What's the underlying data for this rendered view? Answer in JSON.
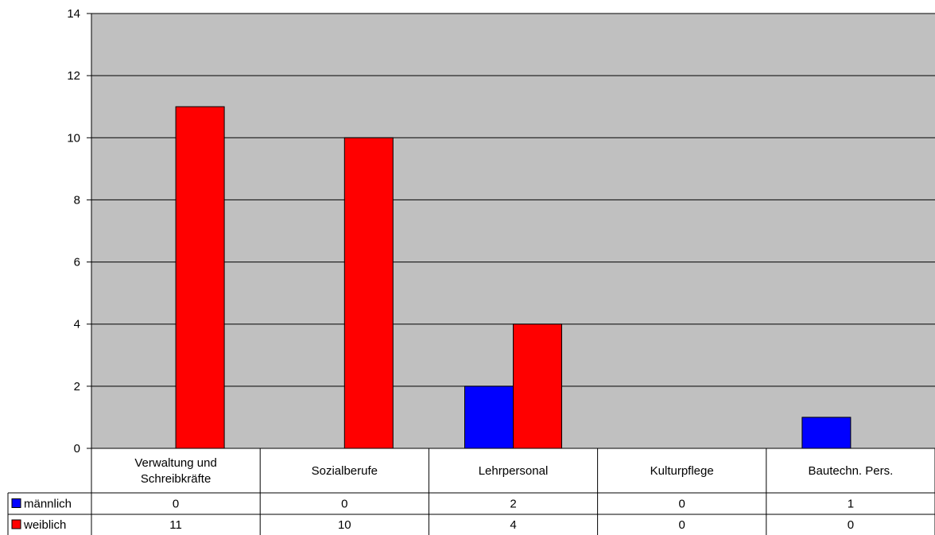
{
  "chart_data": {
    "type": "bar",
    "title": "",
    "xlabel": "",
    "ylabel": "",
    "ylim": [
      0,
      14
    ],
    "yticks": [
      0,
      2,
      4,
      6,
      8,
      10,
      12,
      14
    ],
    "grid": true,
    "legend": "data-table-left",
    "categories": [
      [
        "Verwaltung und",
        "Schreibkräfte"
      ],
      [
        "Sozialberufe"
      ],
      [
        "Lehrpersonal"
      ],
      [
        "Kulturpflege"
      ],
      [
        "Bautechn. Pers."
      ]
    ],
    "series": [
      {
        "name": "männlich",
        "color": "#0000ff",
        "values": [
          0,
          0,
          2,
          0,
          1
        ]
      },
      {
        "name": "weiblich",
        "color": "#ff0000",
        "values": [
          11,
          10,
          4,
          0,
          0
        ]
      }
    ],
    "plot_background": "#c0c0c0"
  }
}
